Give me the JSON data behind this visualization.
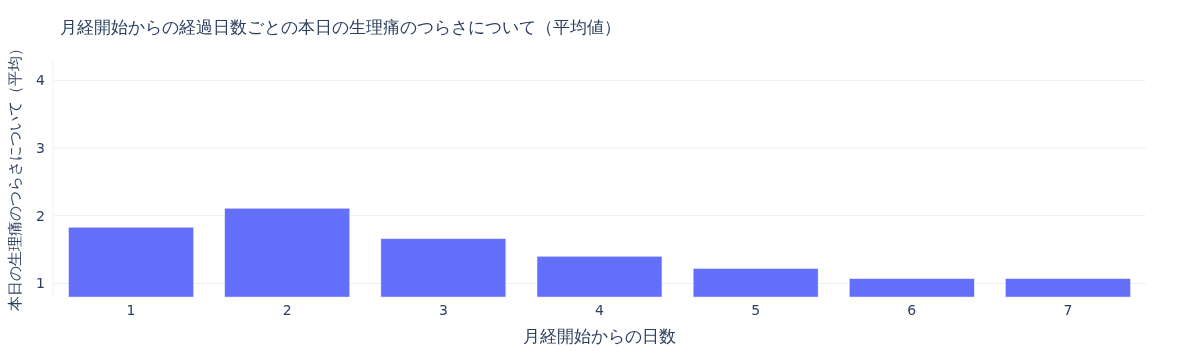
{
  "chart_data": {
    "type": "bar",
    "title": "月経開始からの経過日数ごとの本日の生理痛のつらさについて（平均値）",
    "xlabel": "月経開始からの日数",
    "ylabel": "本日の生理痛のつらさについて（平均）",
    "categories": [
      "1",
      "2",
      "3",
      "4",
      "5",
      "6",
      "7"
    ],
    "values": [
      1.83,
      2.11,
      1.66,
      1.4,
      1.22,
      1.07,
      1.07
    ],
    "color": "#636efa",
    "ylim": [
      0.8,
      4.3
    ],
    "yticks": [
      1,
      2,
      3,
      4
    ],
    "grid": "y"
  }
}
